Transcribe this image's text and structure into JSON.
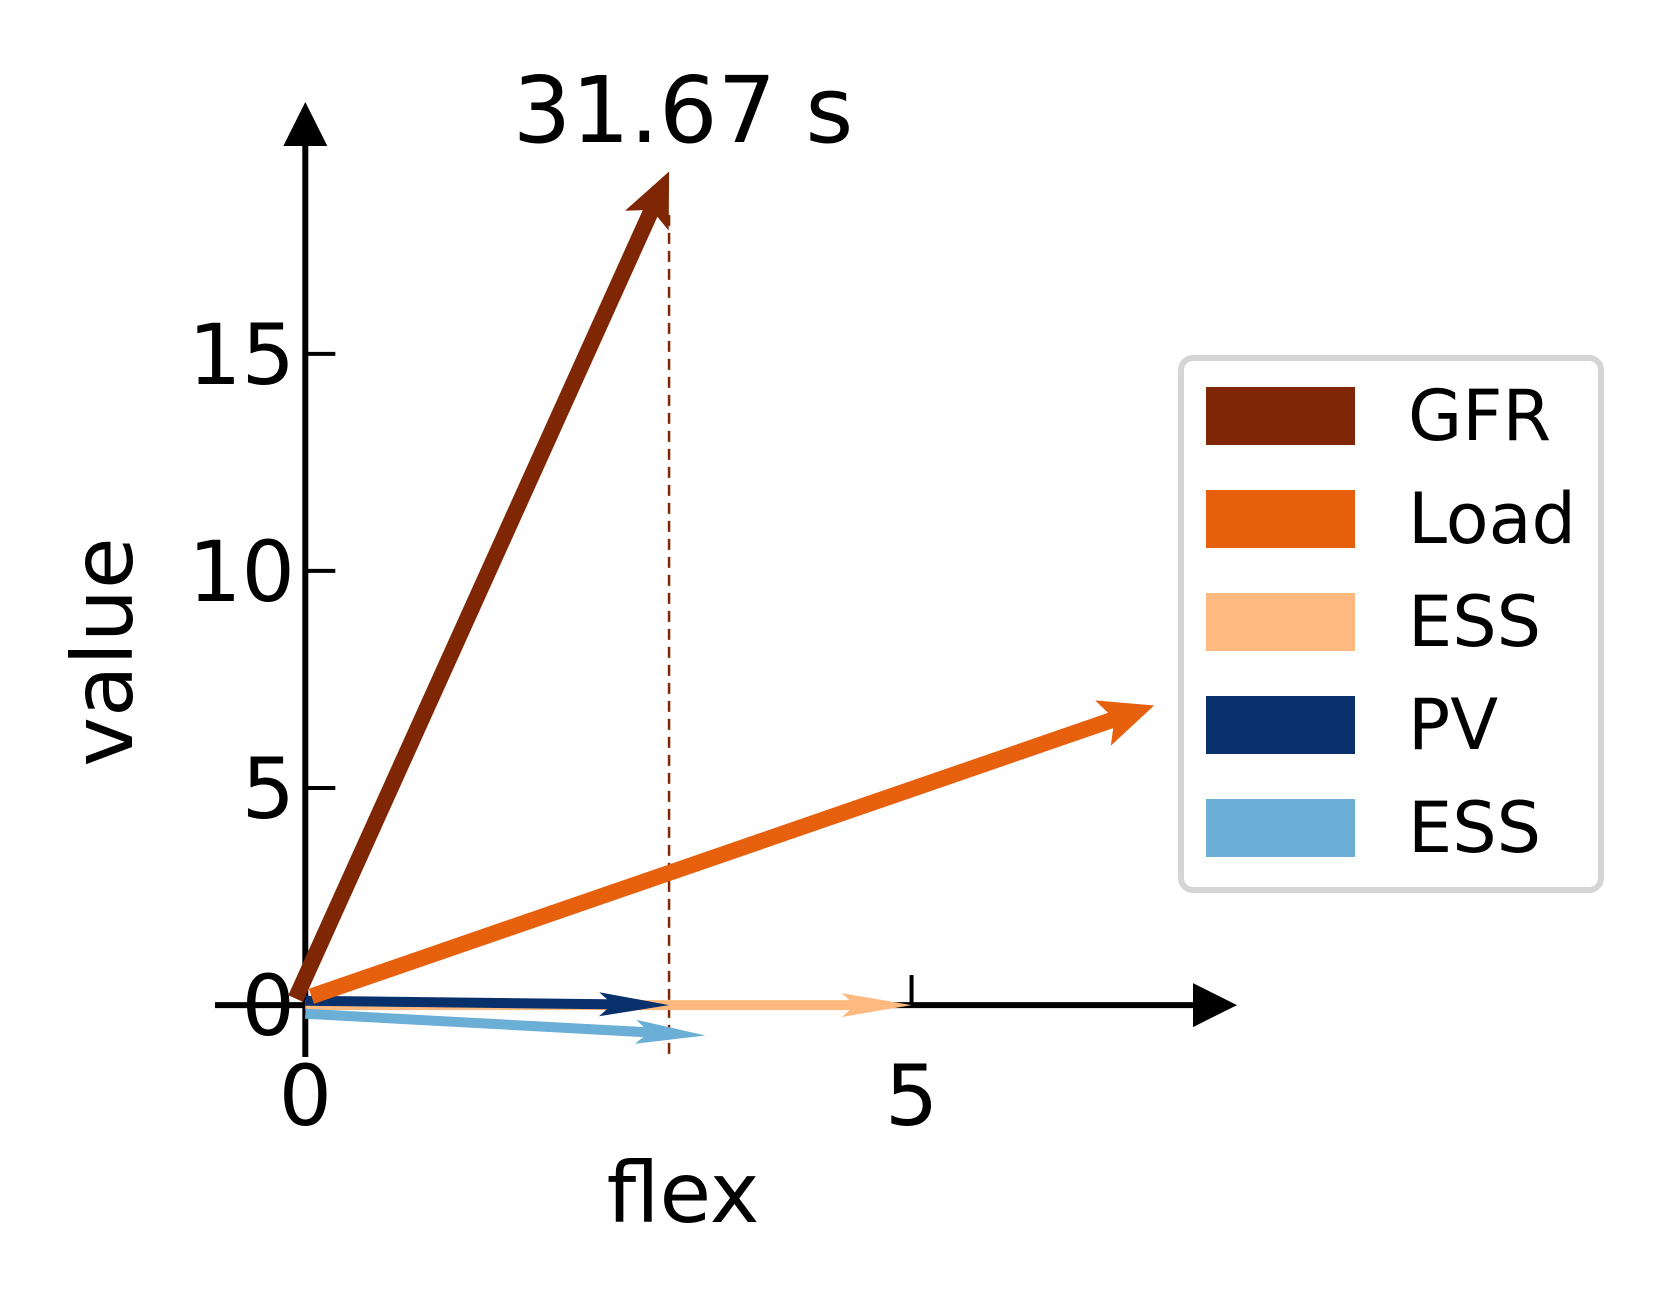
{
  "chart_data": {
    "type": "quiver",
    "title": "31.67 s",
    "xlabel": "flex",
    "ylabel": "value",
    "xticks": [
      0,
      5
    ],
    "yticks": [
      0,
      5,
      10,
      15
    ],
    "xlim": [
      -1.05,
      7.75
    ],
    "ylim": [
      -1.15,
      20.8
    ],
    "grid": false,
    "legend_position": "right",
    "reference_line": {
      "x": 3,
      "style": "dashed",
      "color": "#7f2704"
    },
    "series": [
      {
        "name": "GFR",
        "color": "#7f2704",
        "x0": -0.08,
        "y0": 0.15,
        "x1": 3.0,
        "y1": 19.2
      },
      {
        "name": "Load",
        "color": "#e6600d",
        "x0": 0.05,
        "y0": 0.2,
        "x1": 7.0,
        "y1": 6.9
      },
      {
        "name": "ESS",
        "color": "#fdb97f",
        "x0": 0.0,
        "y0": 0.0,
        "x1": 5.0,
        "y1": 0.0
      },
      {
        "name": "PV",
        "color": "#08306b",
        "x0": 0.0,
        "y0": 0.1,
        "x1": 3.0,
        "y1": 0.0
      },
      {
        "name": "ESS",
        "color": "#6baed6",
        "x0": 0.0,
        "y0": -0.2,
        "x1": 3.3,
        "y1": -0.7
      }
    ]
  }
}
